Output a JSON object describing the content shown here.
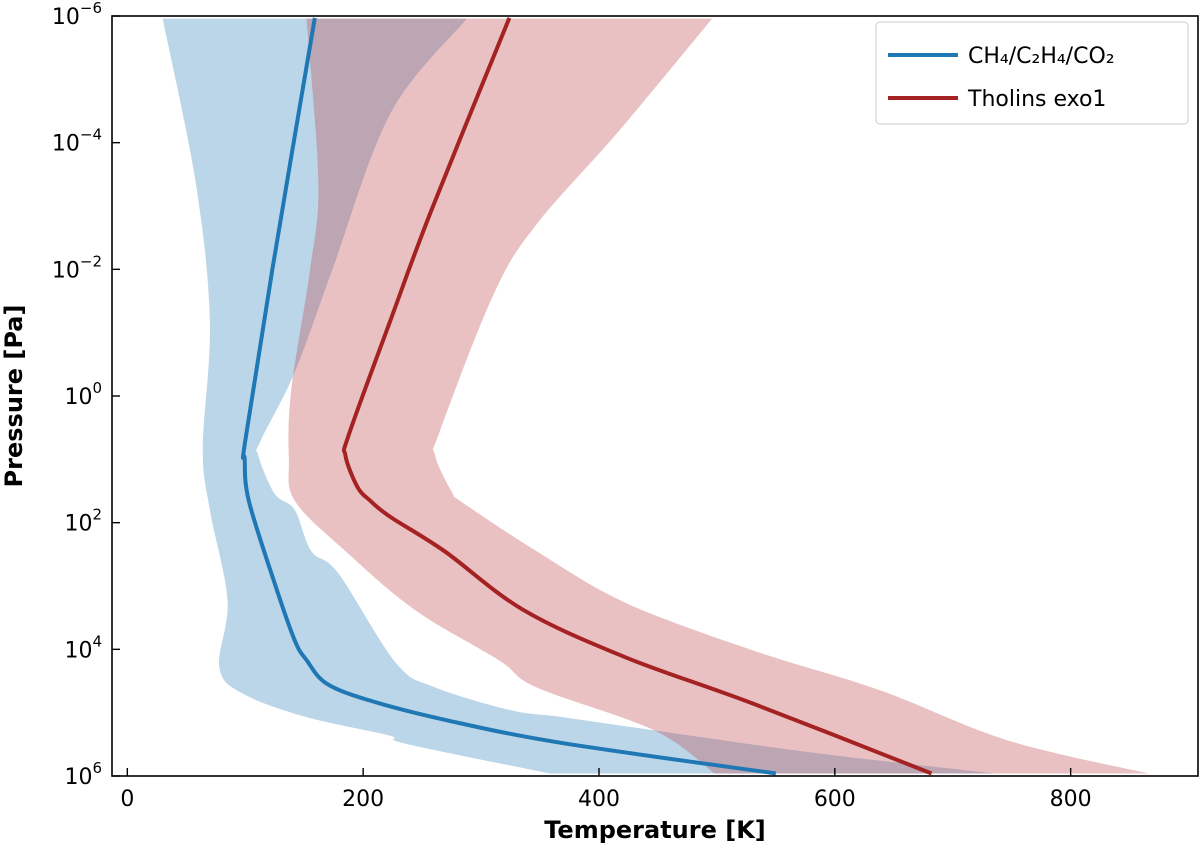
{
  "chart_data": {
    "type": "line",
    "xlabel": "Temperature [K]",
    "ylabel": "Pressure [Pa]",
    "xlim": [
      -13,
      908
    ],
    "ylim": [
      1000000.0,
      1e-06
    ],
    "yscale": "log",
    "y_inverted": true,
    "xticks": [
      0,
      200,
      400,
      600,
      800
    ],
    "yticks": [
      1e-06,
      0.0001,
      0.01,
      1.0,
      100.0,
      10000.0,
      1000000.0
    ],
    "grid": false,
    "legend_position": "top-right",
    "series": [
      {
        "name": "CH₄/C₂H₄/CO₂",
        "color": "#1f77b4",
        "band_color": "#1f77b4",
        "band_alpha": 0.3,
        "line": [
          [
            159,
            1.07e-06
          ],
          [
            123,
            0.01
          ],
          [
            100,
            5.1
          ],
          [
            99.5,
            9.8
          ],
          [
            103,
            45
          ],
          [
            125,
            912
          ],
          [
            142,
            7244
          ],
          [
            152,
            14791
          ],
          [
            169,
            34674
          ],
          [
            206,
            64565
          ],
          [
            271,
            131826
          ],
          [
            369,
            301995
          ],
          [
            550,
            912011
          ]
        ],
        "band_lower": [
          [
            30,
            1.1e-06
          ],
          [
            58,
            0.00043
          ],
          [
            70,
            0.065
          ],
          [
            64,
            6.6
          ],
          [
            70,
            63
          ],
          [
            85,
            1698
          ],
          [
            78,
            19055
          ],
          [
            98,
            50119
          ],
          [
            152,
            117490
          ],
          [
            222,
            229087
          ],
          [
            236,
            309030
          ],
          [
            358,
            912011
          ]
        ],
        "band_upper": [
          [
            288,
            1.1e-06
          ],
          [
            223,
            3.5e-05
          ],
          [
            174,
            0.01
          ],
          [
            142,
            0.42
          ],
          [
            113,
            5.1
          ],
          [
            111,
            8.7
          ],
          [
            125,
            35
          ],
          [
            142,
            63
          ],
          [
            156,
            282
          ],
          [
            179,
            631
          ],
          [
            228,
            16596
          ],
          [
            261,
            39811
          ],
          [
            325,
            91201
          ],
          [
            369,
            117490
          ],
          [
            447,
            190546
          ],
          [
            585,
            436516
          ],
          [
            736,
            912011
          ]
        ]
      },
      {
        "name": "Tholins exo1",
        "color": "#a52222",
        "band_color": "#c44e52",
        "band_alpha": 0.35,
        "line": [
          [
            324,
            1.07e-06
          ],
          [
            258,
            0.00115
          ],
          [
            223,
            0.065
          ],
          [
            188,
            4
          ],
          [
            185,
            8.7
          ],
          [
            195,
            27
          ],
          [
            206,
            45
          ],
          [
            223,
            81
          ],
          [
            269,
            282
          ],
          [
            336,
            2399
          ],
          [
            423,
            13490
          ],
          [
            531,
            72444
          ],
          [
            682,
            912011
          ]
        ],
        "band_lower": [
          [
            152,
            1.1e-06
          ],
          [
            162,
            0.00043
          ],
          [
            155,
            0.01
          ],
          [
            139,
            0.8
          ],
          [
            137,
            9.8
          ],
          [
            142,
            45
          ],
          [
            185,
            282
          ],
          [
            244,
            2399
          ],
          [
            315,
            14791
          ],
          [
            347,
            39811
          ],
          [
            447,
            190546
          ],
          [
            498,
            912011
          ]
        ],
        "band_upper": [
          [
            496,
            1.1e-06
          ],
          [
            417,
            6.5e-05
          ],
          [
            347,
            0.00195
          ],
          [
            311,
            0.024
          ],
          [
            265,
            3.6
          ],
          [
            261,
            8.7
          ],
          [
            276,
            35
          ],
          [
            282,
            45
          ],
          [
            347,
            282
          ],
          [
            423,
            1862
          ],
          [
            531,
            10471
          ],
          [
            639,
            44668
          ],
          [
            747,
            275423
          ],
          [
            866,
            912011
          ]
        ]
      }
    ]
  }
}
